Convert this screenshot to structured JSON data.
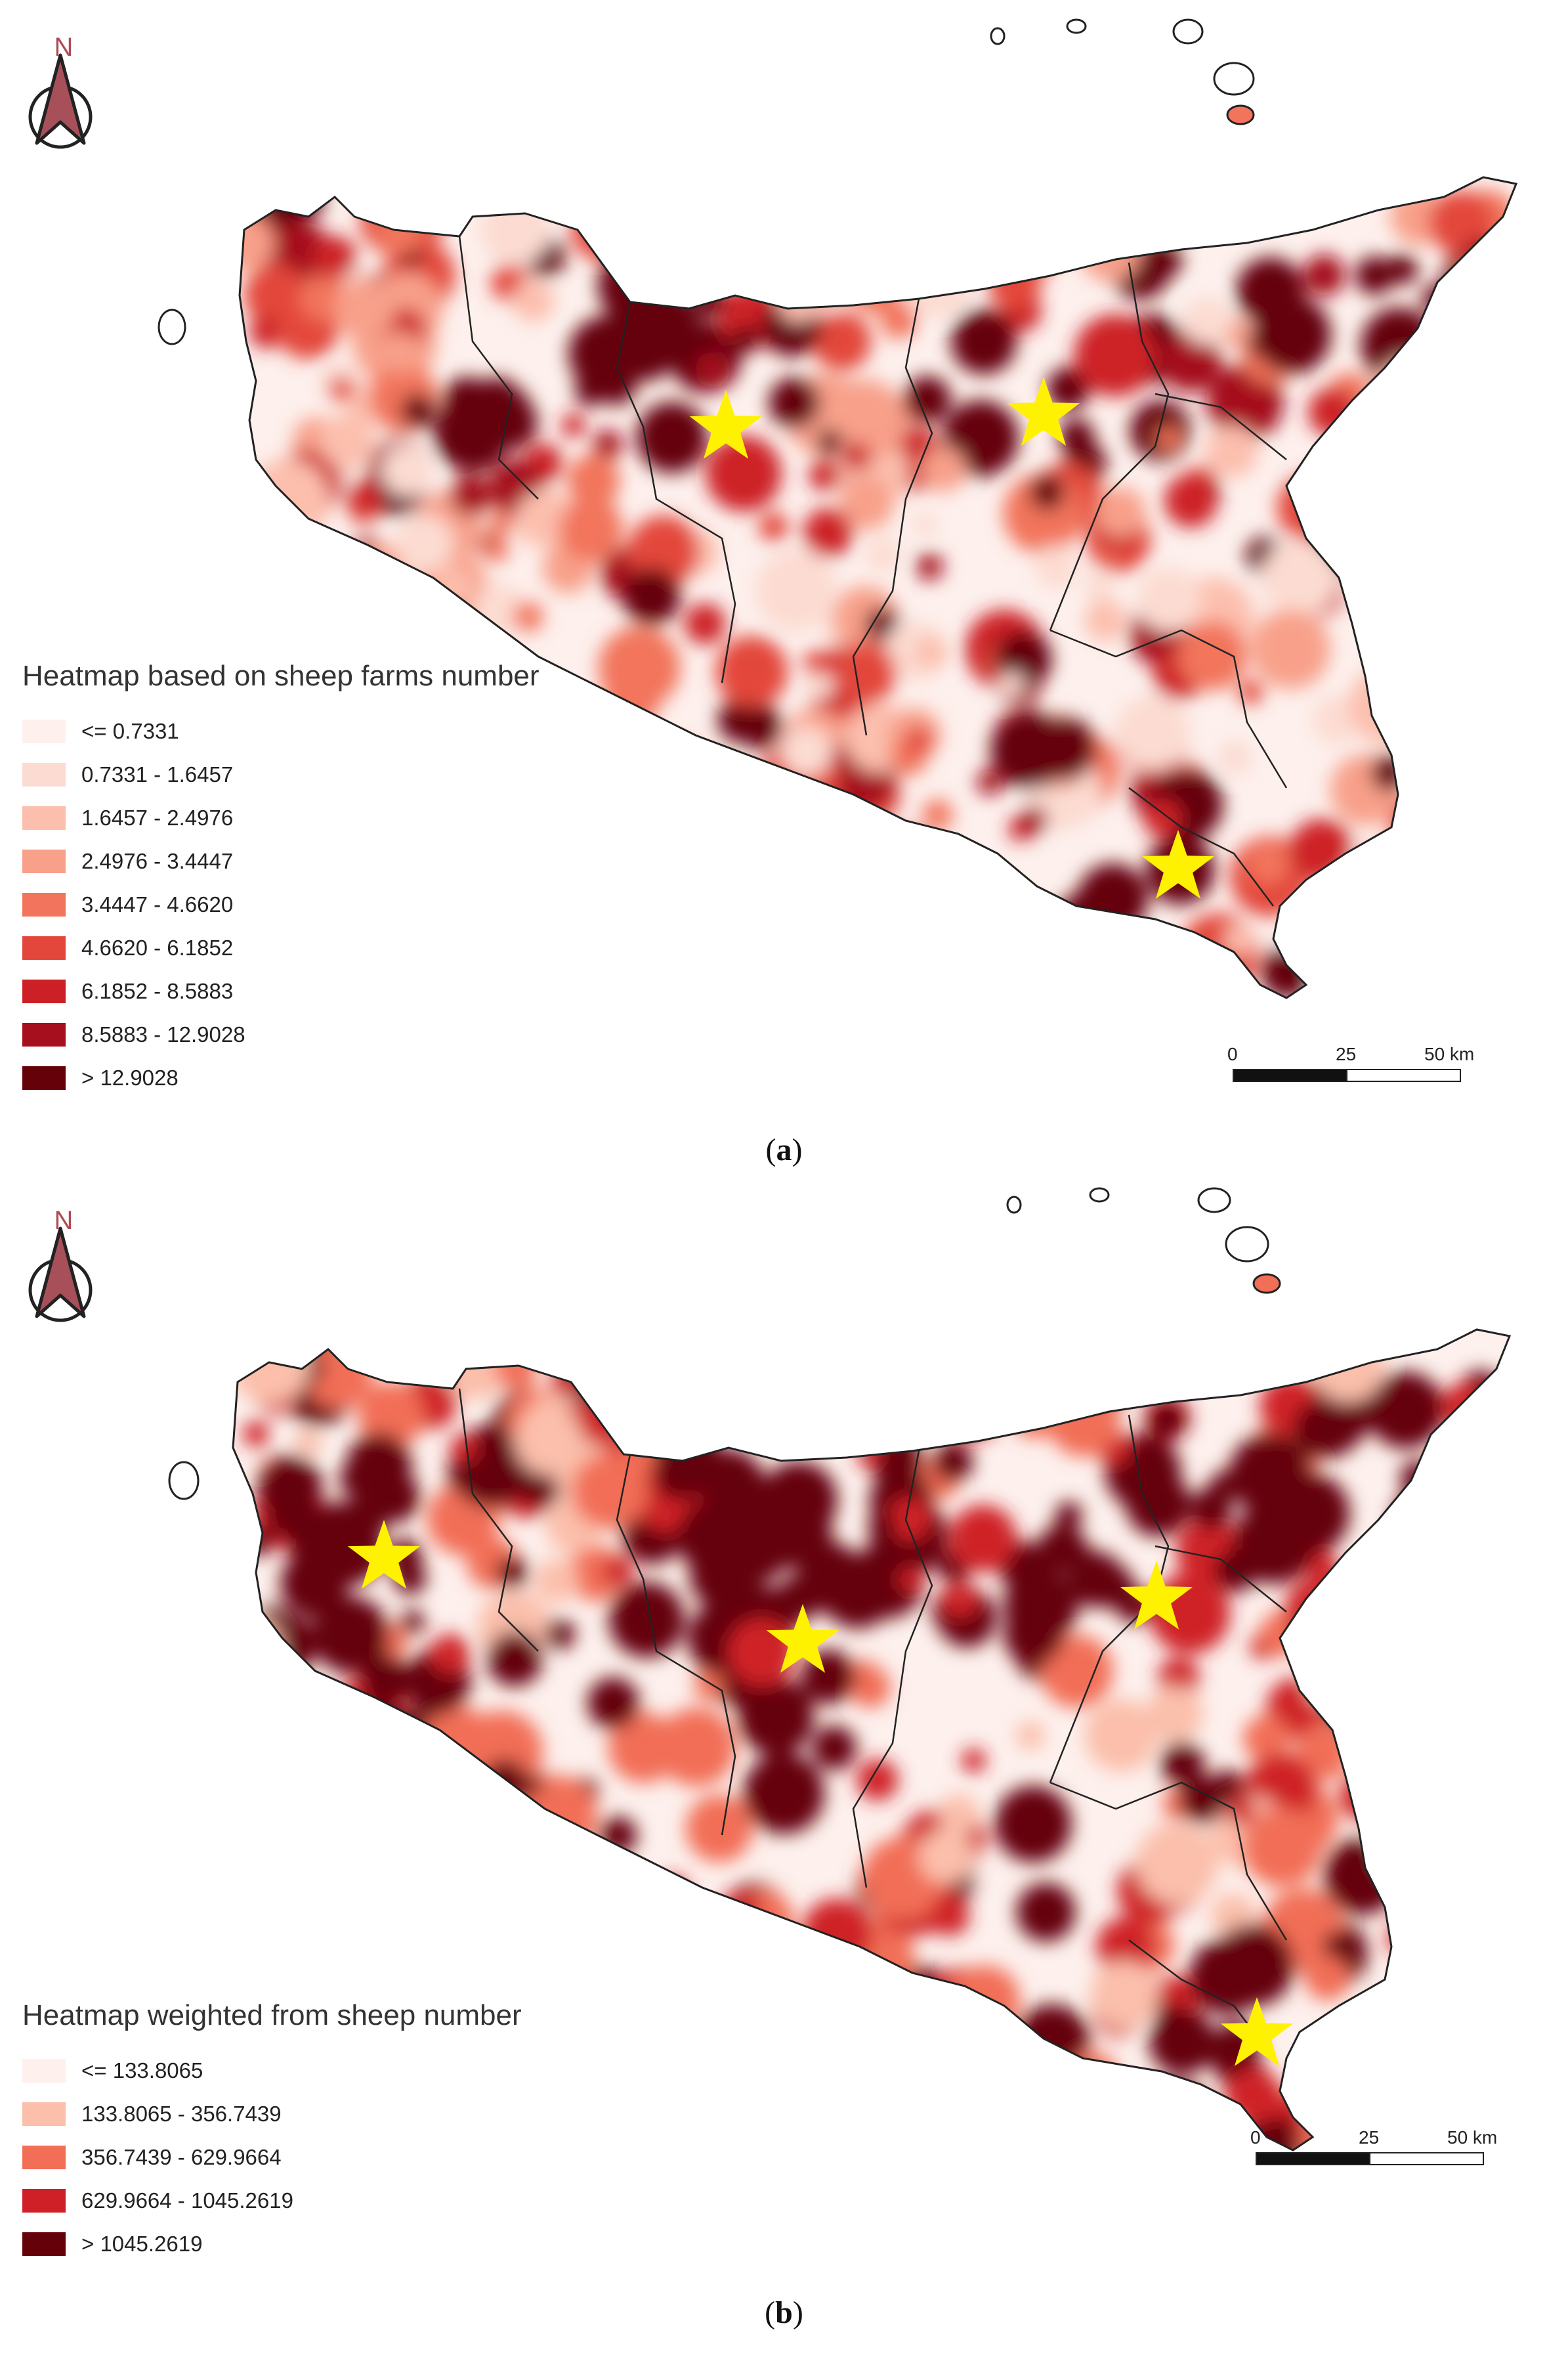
{
  "colors": {
    "ramp_a": [
      "#fdf0ed",
      "#fcdcd2",
      "#fcbfae",
      "#f8a08a",
      "#f2745c",
      "#e3473b",
      "#cd2026",
      "#a50f1e",
      "#650209"
    ],
    "ramp_b": [
      "#fdf0ed",
      "#fbbfab",
      "#f26e57",
      "#cf2027",
      "#650209"
    ],
    "star": "#fff200",
    "boundary": "#222222",
    "north_arrow": "#a8505a"
  },
  "icons": {
    "north_arrow": "north-arrow-icon",
    "star": "star-icon"
  },
  "panel_a": {
    "north_label": "N",
    "legend_title": "Heatmap based on sheep farms number",
    "legend": [
      "<= 0.7331",
      "0.7331 - 1.6457",
      "1.6457 - 2.4976",
      "2.4976 - 3.4447",
      "3.4447 - 4.6620",
      "4.6620 - 6.1852",
      "6.1852 - 8.5883",
      "8.5883 - 12.9028",
      "> 12.9028"
    ],
    "scale_labels": [
      "0",
      "25",
      "50 km"
    ],
    "caption_open": "(",
    "caption_letter": "a",
    "caption_close": ")"
  },
  "panel_b": {
    "north_label": "N",
    "legend_title": "Heatmap weighted from sheep number",
    "legend": [
      "<= 133.8065",
      "133.8065 - 356.7439",
      "356.7439 - 629.9664",
      "629.9664 - 1045.2619",
      "> 1045.2619"
    ],
    "scale_labels": [
      "0",
      "25",
      "50 km"
    ],
    "caption_open": "(",
    "caption_letter": "b",
    "caption_close": ")"
  }
}
